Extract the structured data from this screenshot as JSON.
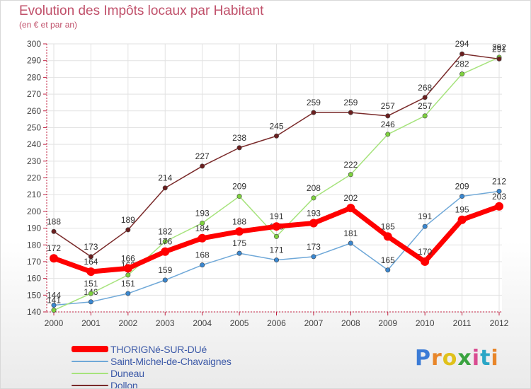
{
  "header": {
    "title": "Evolution des Impôts locaux par Habitant",
    "subtitle": "(en € et par an)"
  },
  "logo": {
    "text": "Proxiti",
    "letter_colors": [
      "#3b7bd6",
      "#e8862a",
      "#e0c11b",
      "#3aa340",
      "#d94c91",
      "#2aa6c6",
      "#e8862a"
    ]
  },
  "chart_data": {
    "type": "line",
    "title": "Evolution des Impôts locaux par Habitant",
    "subtitle": "(en € et par an)",
    "x": [
      "2000",
      "2001",
      "2002",
      "2003",
      "2004",
      "2005",
      "2006",
      "2007",
      "2008",
      "2009",
      "2010",
      "2011",
      "2012"
    ],
    "ylim": [
      140,
      300
    ],
    "yticks": [
      140,
      150,
      160,
      170,
      180,
      190,
      200,
      210,
      220,
      230,
      240,
      250,
      260,
      270,
      280,
      290,
      300
    ],
    "grid": true,
    "legend_position": "bottom-left",
    "series": [
      {
        "name": "THORIGNé-SUR-DUé",
        "color": "#ff0000",
        "values": [
          172,
          164,
          166,
          176,
          184,
          188,
          191,
          193,
          202,
          185,
          170,
          195,
          203
        ],
        "labels": [
          "172",
          "164",
          "166",
          "176",
          "184",
          "188",
          "191",
          "193",
          "202",
          "185",
          "170",
          "195",
          "203"
        ],
        "emphasis": true
      },
      {
        "name": "Saint-Michel-de-Chavaignes",
        "color": "#6fa8d8",
        "marker_color": "#3a87d0",
        "values": [
          144,
          146,
          151,
          159,
          168,
          175,
          171,
          173,
          181,
          165,
          191,
          209,
          212
        ],
        "labels": [
          "144",
          "146",
          "151",
          "159",
          "168",
          "175",
          "171",
          "173",
          "181",
          "165",
          "191",
          "209",
          "212"
        ]
      },
      {
        "name": "Duneau",
        "color": "#a6e37c",
        "marker_color": "#7ed23e",
        "values": [
          141,
          151,
          162,
          182,
          193,
          209,
          185,
          208,
          222,
          246,
          257,
          282,
          292
        ],
        "labels": [
          "141",
          "151",
          "162",
          "182",
          "193",
          "209",
          "185",
          "208",
          "222",
          "246",
          "257",
          "282",
          "292"
        ]
      },
      {
        "name": "Dollon",
        "color": "#7a2a2a",
        "marker_color": "#6b1f1f",
        "values": [
          188,
          173,
          189,
          214,
          227,
          238,
          245,
          259,
          259,
          257,
          268,
          294,
          291
        ],
        "labels": [
          "188",
          "173",
          "189",
          "214",
          "227",
          "238",
          "245",
          "259",
          "259",
          "257",
          "268",
          "294",
          "291"
        ]
      }
    ]
  }
}
